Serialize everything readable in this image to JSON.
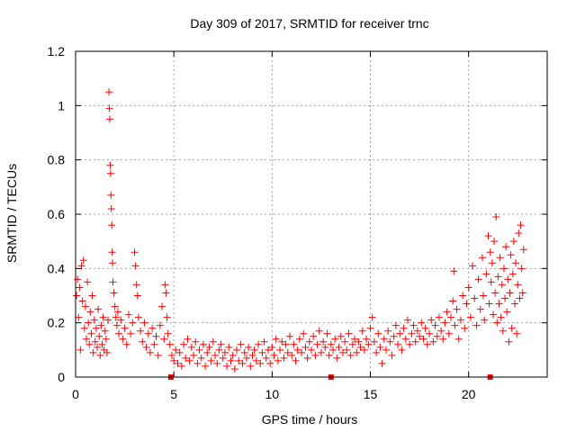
{
  "chart_data": {
    "type": "scatter",
    "title": "Day 309 of 2017, SRMTID for receiver trnc",
    "xlabel": "GPS time / hours",
    "ylabel": "SRMTID / TECUs",
    "xlim": [
      0,
      24
    ],
    "ylim": [
      0,
      1.2
    ],
    "x_ticks": [
      0,
      5,
      10,
      15,
      20
    ],
    "x_tick_labels": [
      "0",
      "5",
      "10",
      "15",
      "20"
    ],
    "y_ticks": [
      0,
      0.2,
      0.4,
      0.6,
      0.8,
      1,
      1.2
    ],
    "y_tick_labels": [
      "0",
      "0.2",
      "0.4",
      "0.6",
      "0.8",
      "1",
      "1.2"
    ],
    "grid": true,
    "marker": "plus",
    "color": "#ff0000",
    "baseline_markers_x": [
      4.85,
      13.0,
      21.1
    ],
    "series": [
      {
        "name": "SRMTID",
        "points": [
          [
            0.05,
            0.3
          ],
          [
            0.1,
            0.36
          ],
          [
            0.15,
            0.22
          ],
          [
            0.2,
            0.33
          ],
          [
            0.25,
            0.1
          ],
          [
            0.3,
            0.41
          ],
          [
            0.35,
            0.28
          ],
          [
            0.4,
            0.43
          ],
          [
            0.45,
            0.18
          ],
          [
            0.5,
            0.26
          ],
          [
            0.55,
            0.14
          ],
          [
            0.6,
            0.35
          ],
          [
            0.65,
            0.2
          ],
          [
            0.7,
            0.12
          ],
          [
            0.75,
            0.24
          ],
          [
            0.8,
            0.16
          ],
          [
            0.85,
            0.3
          ],
          [
            0.9,
            0.09
          ],
          [
            0.95,
            0.21
          ],
          [
            1.0,
            0.13
          ],
          [
            1.05,
            0.18
          ],
          [
            1.1,
            0.11
          ],
          [
            1.15,
            0.25
          ],
          [
            1.2,
            0.15
          ],
          [
            1.25,
            0.08
          ],
          [
            1.3,
            0.19
          ],
          [
            1.35,
            0.12
          ],
          [
            1.4,
            0.22
          ],
          [
            1.45,
            0.1
          ],
          [
            1.5,
            0.17
          ],
          [
            1.55,
            0.14
          ],
          [
            1.6,
            0.09
          ],
          [
            1.65,
            0.21
          ],
          [
            1.7,
            1.05
          ],
          [
            1.72,
            0.99
          ],
          [
            1.74,
            0.95
          ],
          [
            1.76,
            0.78
          ],
          [
            1.78,
            0.75
          ],
          [
            1.8,
            0.67
          ],
          [
            1.82,
            0.62
          ],
          [
            1.84,
            0.56
          ],
          [
            1.86,
            0.46
          ],
          [
            1.88,
            0.42
          ],
          [
            1.9,
            0.35
          ],
          [
            1.95,
            0.31
          ],
          [
            2.0,
            0.26
          ],
          [
            2.05,
            0.22
          ],
          [
            2.1,
            0.19
          ],
          [
            2.15,
            0.24
          ],
          [
            2.2,
            0.16
          ],
          [
            2.3,
            0.21
          ],
          [
            2.4,
            0.14
          ],
          [
            2.5,
            0.18
          ],
          [
            2.6,
            0.12
          ],
          [
            2.7,
            0.23
          ],
          [
            2.8,
            0.16
          ],
          [
            2.9,
            0.2
          ],
          [
            3.0,
            0.46
          ],
          [
            3.05,
            0.41
          ],
          [
            3.1,
            0.34
          ],
          [
            3.15,
            0.3
          ],
          [
            3.2,
            0.22
          ],
          [
            3.3,
            0.17
          ],
          [
            3.4,
            0.13
          ],
          [
            3.5,
            0.2
          ],
          [
            3.6,
            0.11
          ],
          [
            3.7,
            0.16
          ],
          [
            3.8,
            0.09
          ],
          [
            3.9,
            0.18
          ],
          [
            4.0,
            0.12
          ],
          [
            4.1,
            0.15
          ],
          [
            4.2,
            0.08
          ],
          [
            4.3,
            0.19
          ],
          [
            4.4,
            0.26
          ],
          [
            4.5,
            0.14
          ],
          [
            4.55,
            0.34
          ],
          [
            4.6,
            0.31
          ],
          [
            4.65,
            0.22
          ],
          [
            4.7,
            0.16
          ],
          [
            4.8,
            0.12
          ],
          [
            4.9,
            0.08
          ],
          [
            5.0,
            0.06
          ],
          [
            5.1,
            0.1
          ],
          [
            5.2,
            0.05
          ],
          [
            5.3,
            0.09
          ],
          [
            5.4,
            0.04
          ],
          [
            5.5,
            0.12
          ],
          [
            5.6,
            0.07
          ],
          [
            5.7,
            0.14
          ],
          [
            5.8,
            0.06
          ],
          [
            5.9,
            0.11
          ],
          [
            6.0,
            0.08
          ],
          [
            6.1,
            0.13
          ],
          [
            6.2,
            0.05
          ],
          [
            6.3,
            0.1
          ],
          [
            6.4,
            0.07
          ],
          [
            6.5,
            0.12
          ],
          [
            6.6,
            0.04
          ],
          [
            6.7,
            0.09
          ],
          [
            6.8,
            0.11
          ],
          [
            6.9,
            0.06
          ],
          [
            7.0,
            0.13
          ],
          [
            7.1,
            0.08
          ],
          [
            7.2,
            0.05
          ],
          [
            7.3,
            0.1
          ],
          [
            7.4,
            0.12
          ],
          [
            7.5,
            0.07
          ],
          [
            7.6,
            0.09
          ],
          [
            7.7,
            0.04
          ],
          [
            7.8,
            0.11
          ],
          [
            7.9,
            0.06
          ],
          [
            8.0,
            0.08
          ],
          [
            8.1,
            0.03
          ],
          [
            8.2,
            0.1
          ],
          [
            8.3,
            0.06
          ],
          [
            8.4,
            0.12
          ],
          [
            8.5,
            0.05
          ],
          [
            8.6,
            0.09
          ],
          [
            8.7,
            0.07
          ],
          [
            8.8,
            0.11
          ],
          [
            8.9,
            0.04
          ],
          [
            9.0,
            0.08
          ],
          [
            9.1,
            0.1
          ],
          [
            9.2,
            0.06
          ],
          [
            9.3,
            0.12
          ],
          [
            9.4,
            0.05
          ],
          [
            9.5,
            0.09
          ],
          [
            9.6,
            0.13
          ],
          [
            9.7,
            0.07
          ],
          [
            9.8,
            0.1
          ],
          [
            9.9,
            0.05
          ],
          [
            10.0,
            0.11
          ],
          [
            10.1,
            0.08
          ],
          [
            10.2,
            0.14
          ],
          [
            10.3,
            0.06
          ],
          [
            10.4,
            0.1
          ],
          [
            10.5,
            0.13
          ],
          [
            10.6,
            0.07
          ],
          [
            10.7,
            0.12
          ],
          [
            10.8,
            0.09
          ],
          [
            10.9,
            0.15
          ],
          [
            11.0,
            0.08
          ],
          [
            11.1,
            0.12
          ],
          [
            11.2,
            0.06
          ],
          [
            11.3,
            0.1
          ],
          [
            11.4,
            0.14
          ],
          [
            11.5,
            0.09
          ],
          [
            11.6,
            0.16
          ],
          [
            11.7,
            0.11
          ],
          [
            11.8,
            0.07
          ],
          [
            11.9,
            0.13
          ],
          [
            12.0,
            0.1
          ],
          [
            12.1,
            0.15
          ],
          [
            12.2,
            0.08
          ],
          [
            12.3,
            0.12
          ],
          [
            12.4,
            0.17
          ],
          [
            12.5,
            0.09
          ],
          [
            12.6,
            0.13
          ],
          [
            12.7,
            0.11
          ],
          [
            12.8,
            0.16
          ],
          [
            12.9,
            0.08
          ],
          [
            13.0,
            0.12
          ],
          [
            13.1,
            0.1
          ],
          [
            13.2,
            0.14
          ],
          [
            13.3,
            0.07
          ],
          [
            13.4,
            0.11
          ],
          [
            13.5,
            0.15
          ],
          [
            13.6,
            0.09
          ],
          [
            13.7,
            0.13
          ],
          [
            13.8,
            0.1
          ],
          [
            13.9,
            0.16
          ],
          [
            14.0,
            0.08
          ],
          [
            14.1,
            0.12
          ],
          [
            14.2,
            0.14
          ],
          [
            14.3,
            0.09
          ],
          [
            14.4,
            0.13
          ],
          [
            14.5,
            0.11
          ],
          [
            14.6,
            0.17
          ],
          [
            14.7,
            0.1
          ],
          [
            14.8,
            0.14
          ],
          [
            14.9,
            0.12
          ],
          [
            15.0,
            0.18
          ],
          [
            15.1,
            0.22
          ],
          [
            15.2,
            0.13
          ],
          [
            15.3,
            0.09
          ],
          [
            15.4,
            0.16
          ],
          [
            15.5,
            0.11
          ],
          [
            15.6,
            0.05
          ],
          [
            15.7,
            0.14
          ],
          [
            15.8,
            0.1
          ],
          [
            15.9,
            0.17
          ],
          [
            16.0,
            0.13
          ],
          [
            16.1,
            0.08
          ],
          [
            16.2,
            0.15
          ],
          [
            16.3,
            0.19
          ],
          [
            16.4,
            0.12
          ],
          [
            16.5,
            0.16
          ],
          [
            16.6,
            0.1
          ],
          [
            16.7,
            0.18
          ],
          [
            16.8,
            0.14
          ],
          [
            16.9,
            0.21
          ],
          [
            17.0,
            0.12
          ],
          [
            17.1,
            0.16
          ],
          [
            17.2,
            0.19
          ],
          [
            17.3,
            0.13
          ],
          [
            17.4,
            0.17
          ],
          [
            17.5,
            0.15
          ],
          [
            17.6,
            0.2
          ],
          [
            17.7,
            0.14
          ],
          [
            17.8,
            0.18
          ],
          [
            17.9,
            0.12
          ],
          [
            18.0,
            0.16
          ],
          [
            18.1,
            0.21
          ],
          [
            18.2,
            0.13
          ],
          [
            18.3,
            0.19
          ],
          [
            18.4,
            0.15
          ],
          [
            18.5,
            0.22
          ],
          [
            18.6,
            0.17
          ],
          [
            18.7,
            0.14
          ],
          [
            18.8,
            0.2
          ],
          [
            18.9,
            0.24
          ],
          [
            19.0,
            0.16
          ],
          [
            19.1,
            0.22
          ],
          [
            19.2,
            0.28
          ],
          [
            19.25,
            0.39
          ],
          [
            19.3,
            0.19
          ],
          [
            19.4,
            0.25
          ],
          [
            19.5,
            0.14
          ],
          [
            19.6,
            0.21
          ],
          [
            19.7,
            0.3
          ],
          [
            19.8,
            0.18
          ],
          [
            19.9,
            0.27
          ],
          [
            20.0,
            0.33
          ],
          [
            20.1,
            0.22
          ],
          [
            20.2,
            0.41
          ],
          [
            20.3,
            0.29
          ],
          [
            20.4,
            0.19
          ],
          [
            20.5,
            0.36
          ],
          [
            20.6,
            0.25
          ],
          [
            20.7,
            0.44
          ],
          [
            20.75,
            0.3
          ],
          [
            20.8,
            0.21
          ],
          [
            20.9,
            0.38
          ],
          [
            21.0,
            0.52
          ],
          [
            21.05,
            0.27
          ],
          [
            21.1,
            0.46
          ],
          [
            21.15,
            0.35
          ],
          [
            21.2,
            0.42
          ],
          [
            21.25,
            0.23
          ],
          [
            21.3,
            0.5
          ],
          [
            21.35,
            0.31
          ],
          [
            21.4,
            0.59
          ],
          [
            21.45,
            0.2
          ],
          [
            21.5,
            0.37
          ],
          [
            21.55,
            0.27
          ],
          [
            21.6,
            0.44
          ],
          [
            21.65,
            0.22
          ],
          [
            21.7,
            0.34
          ],
          [
            21.75,
            0.17
          ],
          [
            21.8,
            0.4
          ],
          [
            21.85,
            0.29
          ],
          [
            21.9,
            0.48
          ],
          [
            21.95,
            0.24
          ],
          [
            22.0,
            0.36
          ],
          [
            22.05,
            0.13
          ],
          [
            22.1,
            0.31
          ],
          [
            22.15,
            0.45
          ],
          [
            22.2,
            0.18
          ],
          [
            22.25,
            0.38
          ],
          [
            22.3,
            0.5
          ],
          [
            22.35,
            0.27
          ],
          [
            22.4,
            0.42
          ],
          [
            22.45,
            0.16
          ],
          [
            22.5,
            0.34
          ],
          [
            22.55,
            0.53
          ],
          [
            22.6,
            0.29
          ],
          [
            22.65,
            0.56
          ],
          [
            22.7,
            0.4
          ],
          [
            22.75,
            0.31
          ],
          [
            22.8,
            0.47
          ]
        ]
      }
    ]
  }
}
